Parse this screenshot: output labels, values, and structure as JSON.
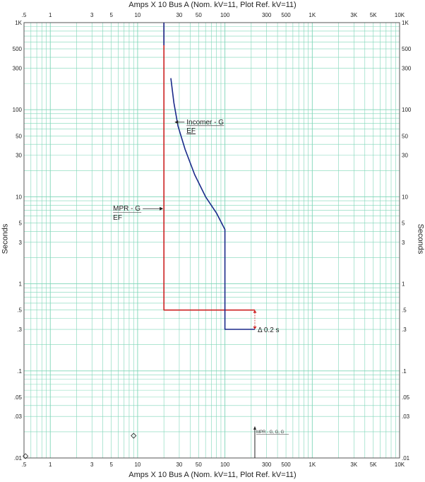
{
  "titles": {
    "top": "Amps  X 10   Bus A (Nom. kV=11, Plot Ref. kV=11)",
    "bottom": "Amps  X 10   Bus A (Nom. kV=11, Plot Ref. kV=11)",
    "ylabel_left": "Seconds",
    "ylabel_right": "Seconds"
  },
  "chart_data": {
    "type": "line",
    "xscale": "log",
    "yscale": "log",
    "xlim": [
      0.5,
      10000
    ],
    "ylim": [
      0.01,
      1000
    ],
    "grid": true,
    "xticks": [
      {
        "v": 0.5,
        "label": ".5"
      },
      {
        "v": 1,
        "label": "1"
      },
      {
        "v": 3,
        "label": "3"
      },
      {
        "v": 5,
        "label": "5"
      },
      {
        "v": 10,
        "label": "10"
      },
      {
        "v": 30,
        "label": "30"
      },
      {
        "v": 50,
        "label": "50"
      },
      {
        "v": 100,
        "label": "100"
      },
      {
        "v": 300,
        "label": "300"
      },
      {
        "v": 500,
        "label": "500"
      },
      {
        "v": 1000,
        "label": "1K"
      },
      {
        "v": 3000,
        "label": "3K"
      },
      {
        "v": 5000,
        "label": "5K"
      },
      {
        "v": 10000,
        "label": "10K"
      }
    ],
    "yticks": [
      {
        "v": 1000,
        "label": "1K"
      },
      {
        "v": 500,
        "label": "500"
      },
      {
        "v": 300,
        "label": "300"
      },
      {
        "v": 100,
        "label": "100"
      },
      {
        "v": 50,
        "label": "50"
      },
      {
        "v": 30,
        "label": "30"
      },
      {
        "v": 10,
        "label": "10"
      },
      {
        "v": 5,
        "label": "5"
      },
      {
        "v": 3,
        "label": "3"
      },
      {
        "v": 1,
        "label": "1"
      },
      {
        "v": 0.5,
        "label": ".5"
      },
      {
        "v": 0.3,
        "label": ".3"
      },
      {
        "v": 0.1,
        "label": ".1"
      },
      {
        "v": 0.05,
        "label": ".05"
      },
      {
        "v": 0.03,
        "label": ".03"
      },
      {
        "v": 0.01,
        "label": ".01"
      }
    ],
    "series": [
      {
        "name": "MPR - G EF",
        "color": "#cc2222",
        "points": [
          [
            20,
            1000
          ],
          [
            20,
            0.5
          ],
          [
            220,
            0.5
          ]
        ]
      },
      {
        "name": "Incomer - G EF",
        "color": "#1a2a8a",
        "points": [
          [
            20,
            1000
          ],
          [
            20,
            550
          ]
        ],
        "comment_free": true
      },
      {
        "name": "Incomer - G EF curve",
        "color": "#1a2a8a",
        "points": [
          [
            24,
            230
          ],
          [
            26,
            120
          ],
          [
            29,
            65
          ],
          [
            35,
            35
          ],
          [
            45,
            18
          ],
          [
            60,
            10
          ],
          [
            80,
            6.5
          ],
          [
            100,
            4.2
          ],
          [
            100,
            0.3
          ],
          [
            220,
            0.3
          ]
        ]
      }
    ],
    "annotations": {
      "incomer_label": [
        "Incomer - G",
        "EF"
      ],
      "mpr_label": [
        "MPR - G",
        "EF"
      ],
      "delta": "Δ 0.2 s",
      "bottom_marker": "MPR - G, G, G"
    }
  }
}
